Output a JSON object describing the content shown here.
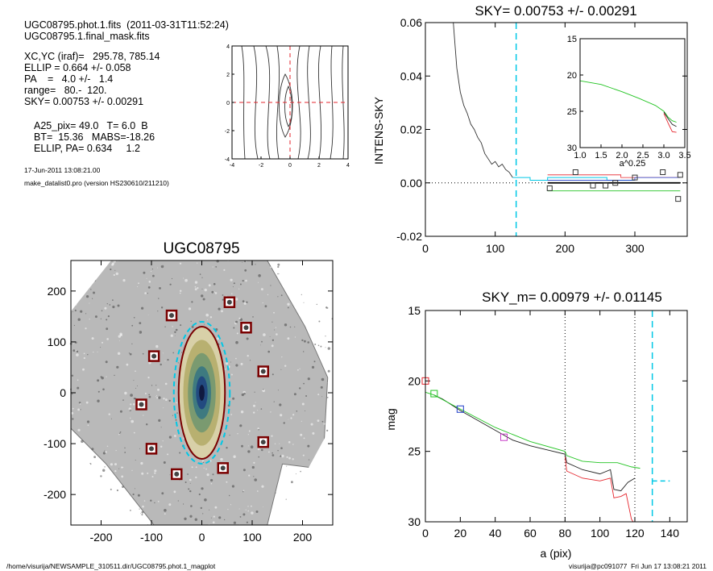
{
  "header": {
    "lines": [
      "UGC08795.phot.1.fits  (2011-03-31T11:52:24)",
      "UGC08795.1.final_mask.fits",
      "XC,YC (iraf)=   295.78, 785.14",
      "ELLIP = 0.664 +/- 0.058",
      "PA    =   4.0 +/-   1.4",
      "range=   80.-  120.",
      "SKY= 0.00753 +/- 0.00291",
      "A25_pix= 49.0   T= 6.0  B",
      "BT=  15.36   MABS=-18.26",
      "ELLIP, PA= 0.634     1.2"
    ],
    "date": "17-Jun-2011 13:08:21.00",
    "program": "make_datalist0.pro (version HS230610/211210)"
  },
  "footer": {
    "path": "/home/visurija/NEWSAMPLE_310511.dir/UGC08795.phot.1_magplot",
    "stamp": "visurija@pc091077  Fri Jun 17 13:08:21 2011"
  },
  "colors": {
    "cyan": "#00c8e6",
    "red": "#e6262d",
    "green": "#22c422",
    "blue": "#1e3cc8",
    "magenta": "#c83cc8",
    "darkred": "#7a0000",
    "gray": "#666666"
  },
  "chart_data": [
    {
      "id": "contour",
      "type": "contour",
      "xlim": [
        -4,
        4
      ],
      "ylim": [
        -4,
        4
      ],
      "xticks": [
        "-4",
        "-2",
        "0",
        "2",
        "4"
      ],
      "yticks": [
        "4",
        "2",
        "0",
        "-2",
        "-4"
      ]
    },
    {
      "id": "sky",
      "type": "line",
      "title": "SKY= 0.00753 +/- 0.00291",
      "xlabel": "",
      "ylabel": "INTENS-SKY",
      "xlim": [
        0,
        375
      ],
      "ylim": [
        -0.02,
        0.06
      ],
      "xticks": [
        "0",
        "100",
        "200",
        "300"
      ],
      "yticks": [
        "0.06",
        "0.04",
        "0.02",
        "0.00",
        "-0.02"
      ],
      "profile_x": [
        40,
        45,
        50,
        55,
        60,
        65,
        70,
        75,
        80,
        85,
        90,
        95,
        100,
        105,
        110,
        115,
        120,
        125
      ],
      "profile_y": [
        0.06,
        0.043,
        0.034,
        0.029,
        0.026,
        0.022,
        0.02,
        0.017,
        0.015,
        0.011,
        0.009,
        0.007,
        0.008,
        0.006,
        0.007,
        0.005,
        0.004,
        0.002
      ],
      "sky_level": 0.0,
      "cut_x": 130,
      "squares": [
        [
          178,
          -0.002
        ],
        [
          215,
          0.004
        ],
        [
          240,
          -0.001
        ],
        [
          258,
          -0.001
        ],
        [
          272,
          0.0
        ],
        [
          300,
          0.002
        ],
        [
          340,
          0.004
        ],
        [
          362,
          -0.006
        ],
        [
          365,
          0.003
        ]
      ]
    },
    {
      "id": "sky-inset",
      "type": "line",
      "xlabel": "a^0.25",
      "xlim": [
        1.0,
        3.5
      ],
      "ylim": [
        30,
        15
      ],
      "xticks": [
        "1.0",
        "1.5",
        "2.0",
        "2.5",
        "3.0",
        "3.5"
      ],
      "yticks": [
        "15",
        "20",
        "25",
        "30"
      ],
      "series": [
        {
          "x": [
            1.0,
            1.5,
            2.0,
            2.4,
            2.8,
            3.0,
            3.1,
            3.2,
            3.3
          ],
          "y": [
            20.8,
            21.3,
            22.3,
            23.2,
            24.2,
            25.0,
            25.8,
            26.3,
            26.5
          ]
        },
        {
          "x": [
            3.0,
            3.1,
            3.2,
            3.3
          ],
          "y": [
            25.3,
            26.6,
            27.8,
            27.9
          ]
        },
        {
          "x": [
            3.0,
            3.1,
            3.2,
            3.3
          ],
          "y": [
            25.1,
            26.0,
            26.8,
            27.1
          ]
        }
      ]
    },
    {
      "id": "image",
      "type": "scatter",
      "title": "UGC08795",
      "xlim": [
        -260,
        260
      ],
      "ylim": [
        -260,
        260
      ],
      "xticks": [
        "-200",
        "-100",
        "0",
        "100",
        "200"
      ],
      "yticks": [
        "200",
        "100",
        "0",
        "-100",
        "-200"
      ],
      "ellipse_semi_major": 130,
      "ellipse_semi_minor": 46,
      "stars": [
        [
          55,
          178
        ],
        [
          -60,
          152
        ],
        [
          88,
          128
        ],
        [
          -95,
          72
        ],
        [
          122,
          42
        ],
        [
          -120,
          -23
        ],
        [
          122,
          -97
        ],
        [
          -100,
          -110
        ],
        [
          42,
          -148
        ],
        [
          -50,
          -160
        ]
      ]
    },
    {
      "id": "mag",
      "type": "line",
      "title": "SKY_m=  0.00979 +/- 0.01145",
      "xlabel": "a (pix)",
      "ylabel": "mag",
      "xlim": [
        0,
        150
      ],
      "ylim": [
        30,
        15
      ],
      "xticks": [
        "0",
        "20",
        "40",
        "60",
        "80",
        "100",
        "120",
        "140"
      ],
      "yticks": [
        "15",
        "20",
        "25",
        "30"
      ],
      "vlines": [
        80,
        120
      ],
      "cut_x": 130,
      "sky_segment": [
        130,
        27.1,
        140,
        27.1
      ],
      "series": [
        {
          "name": "black",
          "x": [
            5,
            10,
            20,
            30,
            40,
            50,
            60,
            70,
            80,
            81,
            90,
            100,
            106,
            108,
            112,
            116,
            120
          ],
          "y": [
            21.0,
            21.3,
            22.1,
            22.8,
            23.5,
            24.2,
            24.6,
            24.9,
            25.2,
            25.8,
            26.3,
            26.6,
            26.3,
            27.7,
            27.8,
            27.2,
            26.9
          ]
        },
        {
          "name": "red",
          "x": [
            80,
            81,
            90,
            100,
            106,
            108,
            112,
            115,
            118,
            119
          ],
          "y": [
            25.4,
            26.4,
            26.9,
            27.1,
            26.9,
            28.3,
            28.2,
            28.0,
            29.8,
            30.0
          ]
        },
        {
          "name": "green",
          "x": [
            0,
            5,
            20,
            40,
            60,
            80,
            81,
            90,
            100,
            110,
            118,
            123
          ],
          "y": [
            20.8,
            21.0,
            22.0,
            23.3,
            24.3,
            25.0,
            25.3,
            25.7,
            25.8,
            25.8,
            26.1,
            26.2
          ]
        }
      ],
      "markers": [
        [
          0,
          20.0,
          "red"
        ],
        [
          5,
          20.9,
          "green"
        ],
        [
          20,
          22.0,
          "blue"
        ],
        [
          45,
          24.0,
          "magenta"
        ]
      ]
    }
  ]
}
